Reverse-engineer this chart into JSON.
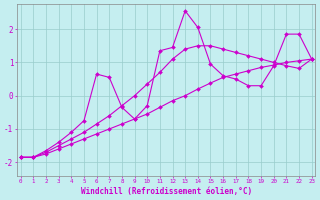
{
  "xlabel": "Windchill (Refroidissement éolien,°C)",
  "bg_color": "#c5eef0",
  "line_color": "#cc00cc",
  "grid_color": "#99cccc",
  "xlim": [
    -0.3,
    23.3
  ],
  "ylim": [
    -2.4,
    2.75
  ],
  "yticks": [
    -2,
    -1,
    0,
    1,
    2
  ],
  "xticks": [
    0,
    1,
    2,
    3,
    4,
    5,
    6,
    7,
    8,
    9,
    10,
    11,
    12,
    13,
    14,
    15,
    16,
    17,
    18,
    19,
    20,
    21,
    22,
    23
  ],
  "line1_x": [
    0,
    1,
    2,
    3,
    4,
    5,
    6,
    7,
    8,
    9,
    10,
    11,
    12,
    13,
    14,
    15,
    16,
    17,
    18,
    19,
    20,
    21,
    22,
    23
  ],
  "line1_y": [
    -1.85,
    -1.85,
    -1.75,
    -1.6,
    -1.45,
    -1.3,
    -1.15,
    -1.0,
    -0.85,
    -0.7,
    -0.55,
    -0.35,
    -0.15,
    0.0,
    0.2,
    0.38,
    0.55,
    0.65,
    0.75,
    0.85,
    0.92,
    1.0,
    1.05,
    1.1
  ],
  "line2_x": [
    0,
    1,
    2,
    3,
    4,
    5,
    6,
    7,
    8,
    9,
    10,
    11,
    12,
    13,
    14,
    15,
    16,
    17,
    18,
    19,
    20,
    21,
    22,
    23
  ],
  "line2_y": [
    -1.85,
    -1.85,
    -1.7,
    -1.5,
    -1.3,
    -1.1,
    -0.85,
    -0.6,
    -0.3,
    0.0,
    0.35,
    0.7,
    1.1,
    1.4,
    1.5,
    1.5,
    1.4,
    1.3,
    1.2,
    1.1,
    1.0,
    0.9,
    0.82,
    1.1
  ],
  "line3_x": [
    0,
    1,
    2,
    3,
    4,
    5,
    6,
    7,
    8,
    9,
    10,
    11,
    12,
    13,
    14,
    15,
    16,
    17,
    18,
    19,
    20,
    21,
    22,
    23
  ],
  "line3_y": [
    -1.85,
    -1.85,
    -1.65,
    -1.4,
    -1.1,
    -0.75,
    0.65,
    0.55,
    -0.35,
    -0.7,
    -0.3,
    1.35,
    1.45,
    2.55,
    2.05,
    0.95,
    0.6,
    0.5,
    0.3,
    0.3,
    0.9,
    1.85,
    1.85,
    1.1
  ]
}
